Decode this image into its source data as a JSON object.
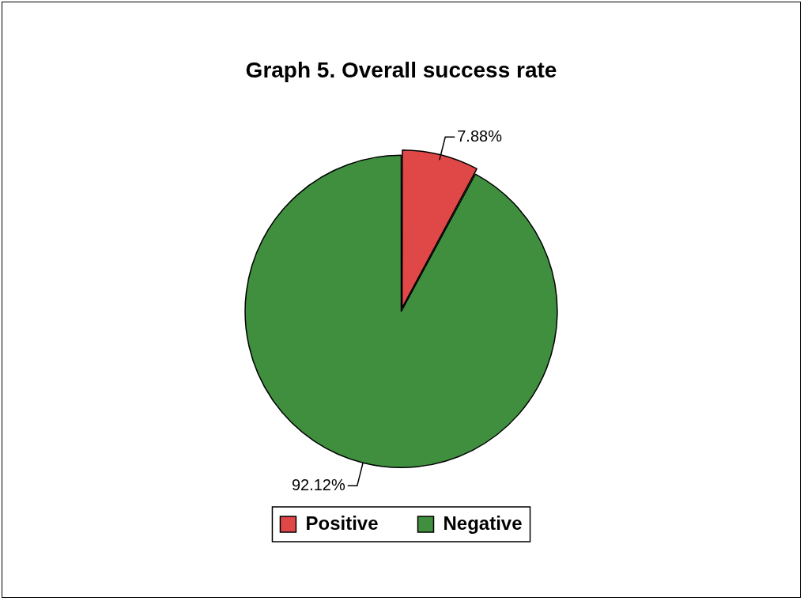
{
  "chart_data": {
    "type": "pie",
    "title": "Graph 5. Overall success rate",
    "categories": [
      "Positive",
      "Negative"
    ],
    "values": [
      7.88,
      92.12
    ],
    "colors": [
      "#e04848",
      "#3f8f3f"
    ],
    "value_labels": [
      "7.88%",
      "92.12%"
    ],
    "legend": "bottom"
  }
}
